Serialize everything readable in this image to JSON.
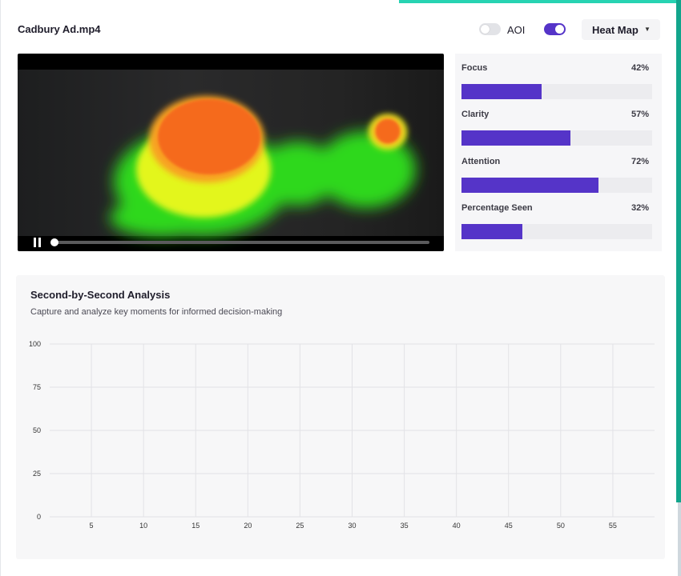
{
  "file": {
    "title": "Cadbury Ad.mp4"
  },
  "controls": {
    "aoi": {
      "label": "AOI",
      "enabled": false
    },
    "heatmap_toggle": {
      "enabled": true
    },
    "view_dropdown": {
      "selected": "Heat Map",
      "icon": "caret-down-icon"
    }
  },
  "player": {
    "state": "paused",
    "progress": 0.0,
    "icons": [
      "pause-icon"
    ]
  },
  "metrics": [
    {
      "label": "Focus",
      "value": "42%",
      "fraction": 0.42
    },
    {
      "label": "Clarity",
      "value": "57%",
      "fraction": 0.57
    },
    {
      "label": "Attention",
      "value": "72%",
      "fraction": 0.72
    },
    {
      "label": "Percentage Seen",
      "value": "32%",
      "fraction": 0.32
    }
  ],
  "analysis": {
    "title": "Second-by-Second Analysis",
    "subtitle": "Capture and analyze key moments for informed decision-making"
  },
  "chart_data": {
    "type": "line",
    "title": "",
    "xlabel": "",
    "ylabel": "",
    "x_ticks": [
      "5",
      "10",
      "15",
      "20",
      "25",
      "30",
      "35",
      "40",
      "45",
      "50",
      "55"
    ],
    "y_ticks": [
      "0",
      "25",
      "50",
      "75",
      "100"
    ],
    "xlim": [
      1,
      59
    ],
    "ylim": [
      0,
      100
    ],
    "grid": true,
    "series": []
  },
  "colors": {
    "accent": "#5534c8",
    "teal": "#27d3b2",
    "panel_bg": "#f6f6f8"
  }
}
